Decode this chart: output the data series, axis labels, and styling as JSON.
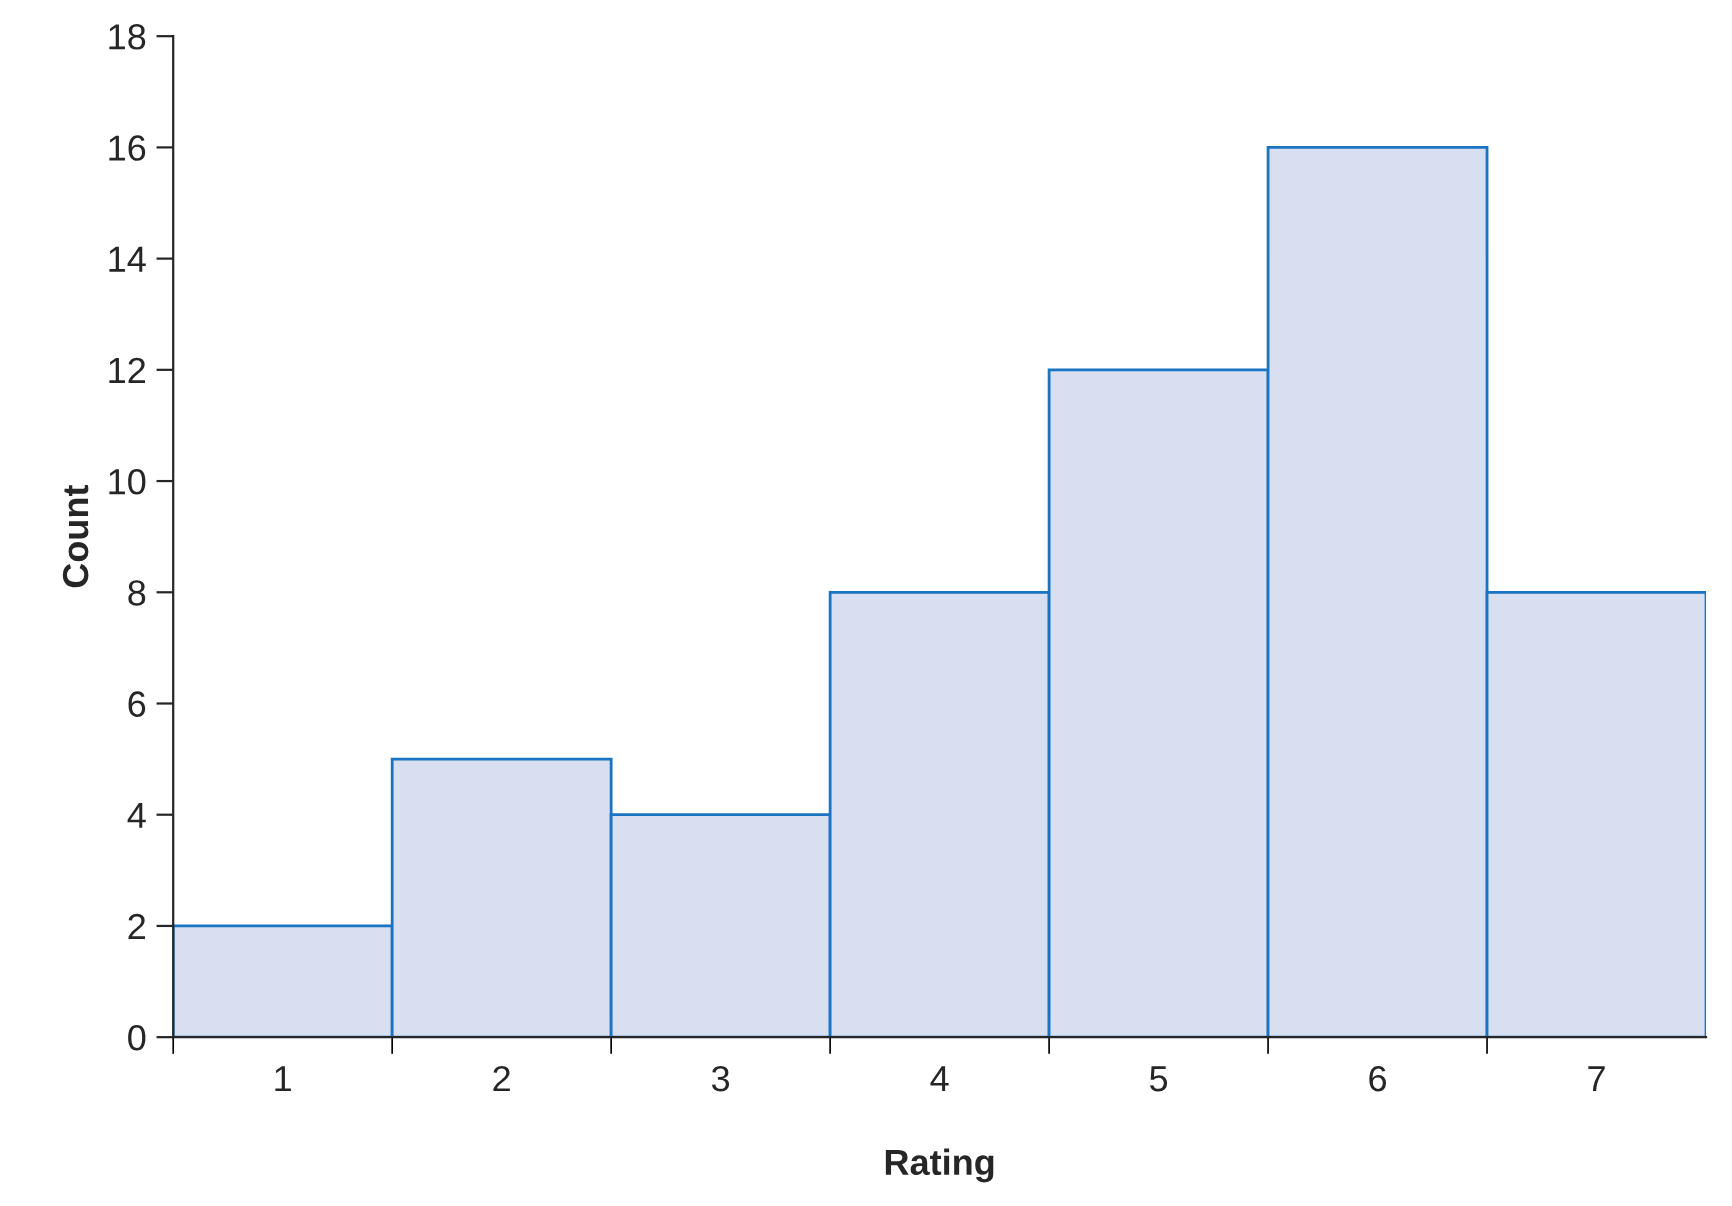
{
  "chart_data": {
    "type": "bar",
    "xlabel": "Rating",
    "ylabel": "Count",
    "categories": [
      "1",
      "2",
      "3",
      "4",
      "5",
      "6",
      "7"
    ],
    "values": [
      2,
      5,
      4,
      8,
      12,
      16,
      8
    ],
    "color": "#d7dff0",
    "ylim": [
      0,
      18
    ],
    "yticks": [
      0,
      2,
      4,
      6,
      8,
      10,
      12,
      14,
      16,
      18
    ],
    "grid": false,
    "legend": false
  }
}
